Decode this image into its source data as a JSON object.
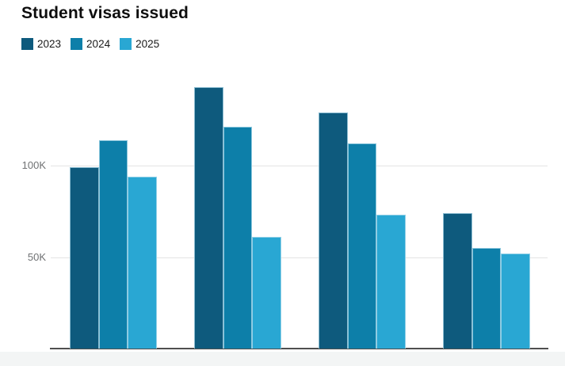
{
  "title": "Student visas issued",
  "legend": {
    "items": [
      {
        "label": "2023",
        "color": "#0e5a7d"
      },
      {
        "label": "2024",
        "color": "#0d7fa9"
      },
      {
        "label": "2025",
        "color": "#29a7d3"
      }
    ]
  },
  "y_axis": {
    "tick_labels": [
      "100K",
      "50K"
    ]
  },
  "colors": {
    "series_2023": "#0e5a7d",
    "series_2024": "#0d7fa9",
    "series_2025": "#29a7d3",
    "gridline": "#e3e3e3",
    "axis_line": "#4f4f4f",
    "tick_text": "#6f7173"
  },
  "chart_data": {
    "type": "bar",
    "title": "Student visas issued",
    "categories": [
      "",
      "",
      "",
      ""
    ],
    "series": [
      {
        "name": "2023",
        "color": "#0e5a7d",
        "values": [
          99,
          143,
          129,
          74
        ]
      },
      {
        "name": "2024",
        "color": "#0d7fa9",
        "values": [
          114,
          121,
          112,
          55
        ]
      },
      {
        "name": "2025",
        "color": "#29a7d3",
        "values": [
          94,
          61,
          73,
          52
        ]
      }
    ],
    "unit": "thousands",
    "ylabel": "",
    "ylim": [
      0,
      155
    ],
    "y_ticks": [
      {
        "label": "100K",
        "value": 100
      },
      {
        "label": "50K",
        "value": 50
      }
    ],
    "grid": true,
    "legend_position": "top-left",
    "x_tick_labels_visible": false
  }
}
